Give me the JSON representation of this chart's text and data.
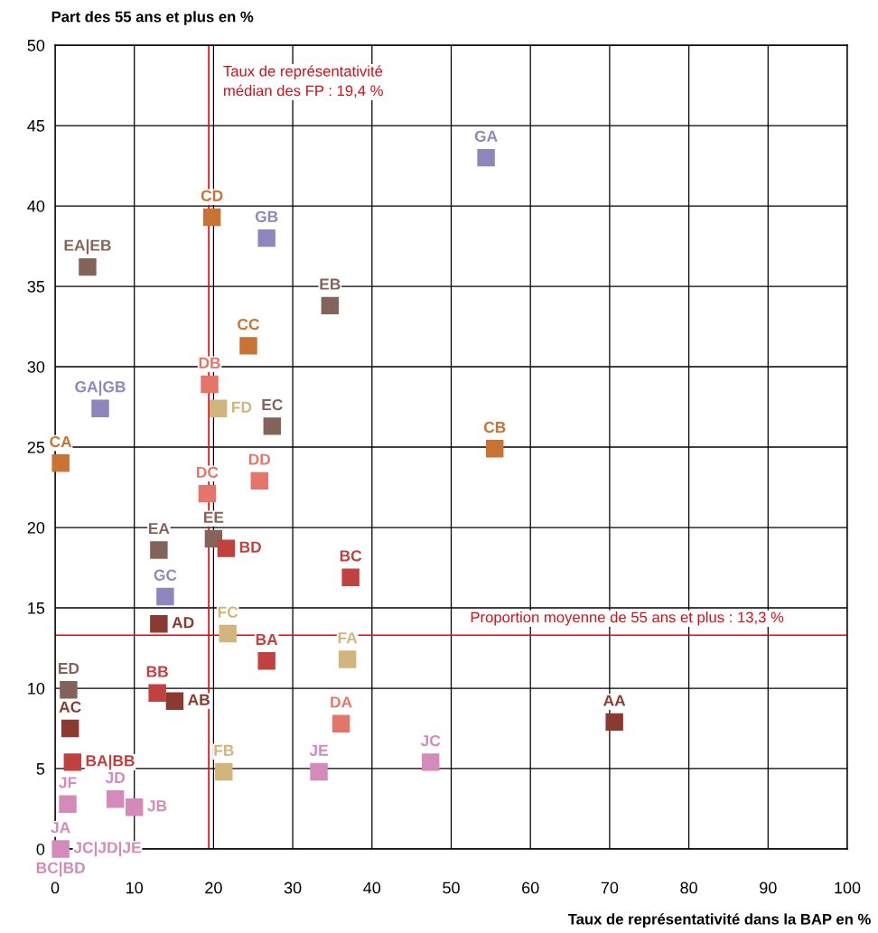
{
  "chart_data": {
    "type": "scatter",
    "xlabel": "Taux de représentativité dans la BAP en %",
    "ylabel": "Part des 55 ans et plus en %",
    "xlim": [
      0,
      100
    ],
    "xticks": [
      0,
      10,
      20,
      30,
      40,
      50,
      60,
      70,
      80,
      90,
      100
    ],
    "ylim": [
      0,
      50
    ],
    "yticks": [
      0,
      5,
      10,
      15,
      20,
      25,
      30,
      35,
      40,
      45,
      50
    ],
    "grid": true,
    "marker": "square",
    "annotations": [
      {
        "text": "JC|JD|JE",
        "x": 0.7,
        "y": 0
      },
      {
        "text": "BC|BD",
        "x": 0.7,
        "y": 0
      }
    ],
    "ref_lines": [
      {
        "axis": "x",
        "value": 19.4,
        "label": "Taux de représentativité\nmédian des FP : 19,4 %",
        "color": "#d0101a"
      },
      {
        "axis": "y",
        "value": 13.3,
        "label": "Proportion moyenne de 55 ans et plus : 13,3 %",
        "color": "#d0101a"
      }
    ],
    "series": [
      {
        "name": "GA",
        "color": "#8e86bc",
        "x": [
          54.4
        ],
        "values": [
          43.0
        ]
      },
      {
        "name": "CD",
        "color": "#c87333",
        "x": [
          19.8
        ],
        "values": [
          39.3
        ]
      },
      {
        "name": "GB",
        "color": "#8e86bc",
        "x": [
          26.7
        ],
        "values": [
          38.0
        ]
      },
      {
        "name": "EA|EB",
        "color": "#84645a",
        "x": [
          4.1
        ],
        "values": [
          36.2
        ]
      },
      {
        "name": "EB",
        "color": "#84645a",
        "x": [
          34.7
        ],
        "values": [
          33.8
        ]
      },
      {
        "name": "CC",
        "color": "#c87333",
        "x": [
          24.4
        ],
        "values": [
          31.3
        ]
      },
      {
        "name": "DB",
        "color": "#e5756b",
        "x": [
          19.5
        ],
        "values": [
          28.9
        ]
      },
      {
        "name": "FD",
        "color": "#d1b57c",
        "x": [
          20.6
        ],
        "values": [
          27.4
        ]
      },
      {
        "name": "GA|GB",
        "color": "#8e86bc",
        "x": [
          5.7
        ],
        "values": [
          27.4
        ]
      },
      {
        "name": "EC",
        "color": "#84645a",
        "x": [
          27.4
        ],
        "values": [
          26.3
        ]
      },
      {
        "name": "CB",
        "color": "#c87333",
        "x": [
          55.5
        ],
        "values": [
          24.9
        ]
      },
      {
        "name": "CA",
        "color": "#c87333",
        "x": [
          0.7
        ],
        "values": [
          24.0
        ]
      },
      {
        "name": "DD",
        "color": "#e5756b",
        "x": [
          25.8
        ],
        "values": [
          22.9
        ]
      },
      {
        "name": "DC",
        "color": "#e5756b",
        "x": [
          19.2
        ],
        "values": [
          22.1
        ]
      },
      {
        "name": "EE",
        "color": "#84645a",
        "x": [
          20.0
        ],
        "values": [
          19.3
        ]
      },
      {
        "name": "BD",
        "color": "#c0413f",
        "x": [
          21.6
        ],
        "values": [
          18.7
        ]
      },
      {
        "name": "EA",
        "color": "#84645a",
        "x": [
          13.1
        ],
        "values": [
          18.6
        ]
      },
      {
        "name": "BC",
        "color": "#c0413f",
        "x": [
          37.3
        ],
        "values": [
          16.9
        ]
      },
      {
        "name": "GC",
        "color": "#8e86bc",
        "x": [
          13.9
        ],
        "values": [
          15.7
        ]
      },
      {
        "name": "AD",
        "color": "#8b3a32",
        "x": [
          13.1
        ],
        "values": [
          14.0
        ]
      },
      {
        "name": "FC",
        "color": "#d1b57c",
        "x": [
          21.8
        ],
        "values": [
          13.4
        ]
      },
      {
        "name": "BA",
        "color": "#c0413f",
        "x": [
          26.7
        ],
        "values": [
          11.7
        ]
      },
      {
        "name": "FA",
        "color": "#d1b57c",
        "x": [
          36.9
        ],
        "values": [
          11.8
        ]
      },
      {
        "name": "ED",
        "color": "#84645a",
        "x": [
          1.7
        ],
        "values": [
          9.9
        ]
      },
      {
        "name": "BB",
        "color": "#c0413f",
        "x": [
          12.9
        ],
        "values": [
          9.7
        ]
      },
      {
        "name": "AB",
        "color": "#8b3a32",
        "x": [
          15.1
        ],
        "values": [
          9.2
        ]
      },
      {
        "name": "AC",
        "color": "#8b3a32",
        "x": [
          1.9
        ],
        "values": [
          7.5
        ]
      },
      {
        "name": "DA",
        "color": "#e5756b",
        "x": [
          36.1
        ],
        "values": [
          7.8
        ]
      },
      {
        "name": "AA",
        "color": "#8b3a32",
        "x": [
          70.6
        ],
        "values": [
          7.9
        ]
      },
      {
        "name": "BA|BB",
        "color": "#c0413f",
        "x": [
          2.2
        ],
        "values": [
          5.4
        ]
      },
      {
        "name": "JC",
        "color": "#d48bb9",
        "x": [
          47.4
        ],
        "values": [
          5.4
        ]
      },
      {
        "name": "FB",
        "color": "#d1b57c",
        "x": [
          21.3
        ],
        "values": [
          4.8
        ]
      },
      {
        "name": "JE",
        "color": "#d48bb9",
        "x": [
          33.3
        ],
        "values": [
          4.8
        ]
      },
      {
        "name": "JF",
        "color": "#d48bb9",
        "x": [
          1.6
        ],
        "values": [
          2.8
        ]
      },
      {
        "name": "JD",
        "color": "#d48bb9",
        "x": [
          7.6
        ],
        "values": [
          3.1
        ]
      },
      {
        "name": "JB",
        "color": "#d48bb9",
        "x": [
          10.0
        ],
        "values": [
          2.6
        ]
      },
      {
        "name": "JA",
        "color": "#d48bb9",
        "x": [
          0.7
        ],
        "values": [
          0
        ]
      }
    ]
  }
}
